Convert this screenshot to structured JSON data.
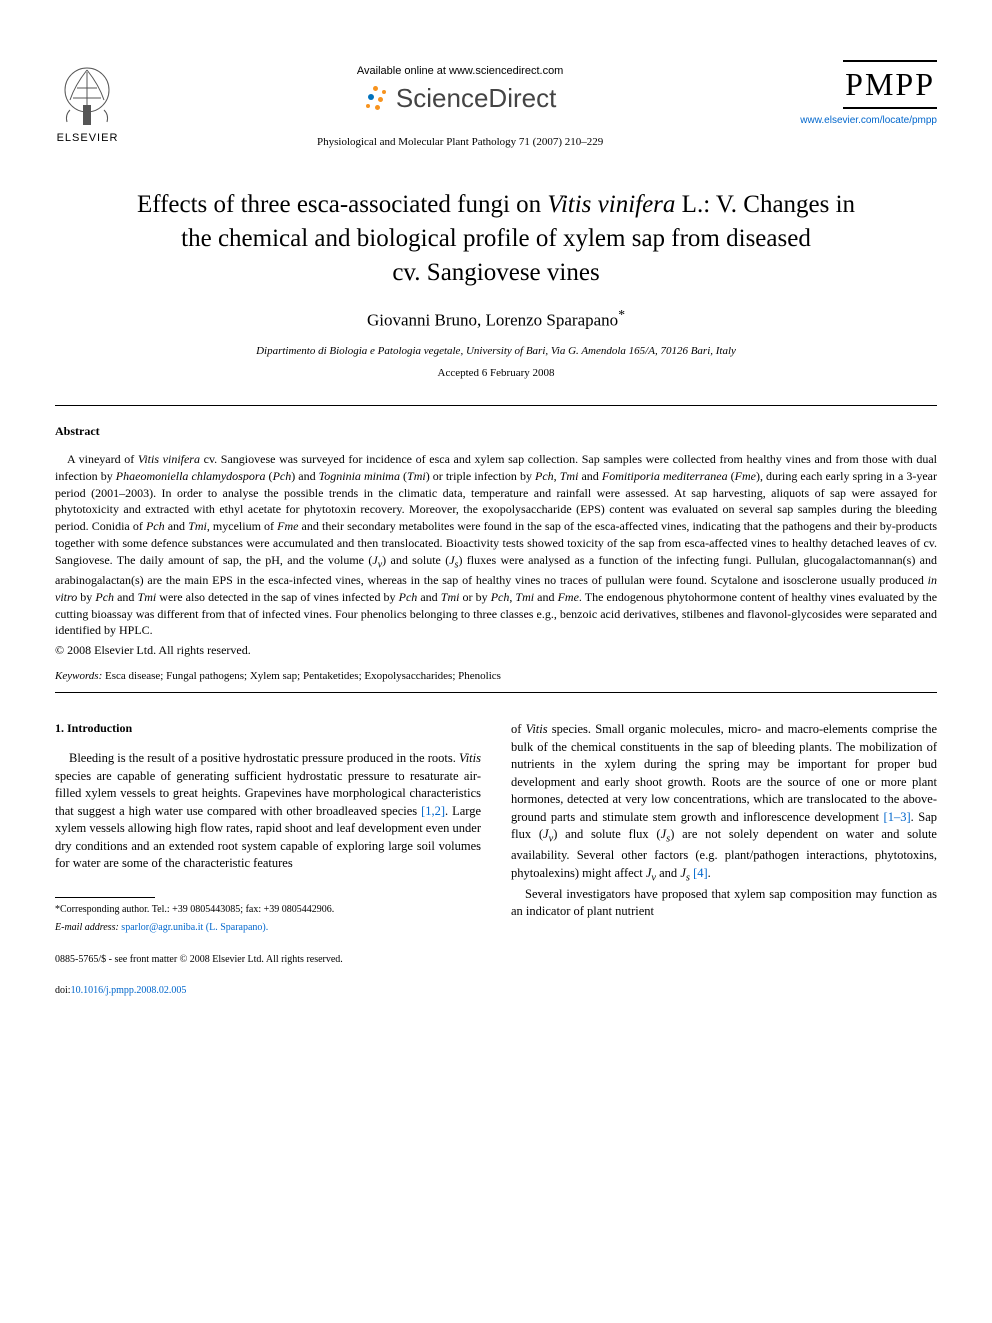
{
  "header": {
    "elsevier_label": "ELSEVIER",
    "available_online": "Available online at www.sciencedirect.com",
    "sciencedirect": "ScienceDirect",
    "journal_ref": "Physiological and Molecular Plant Pathology 71 (2007) 210–229",
    "pmpp": "PMPP",
    "pmpp_link": "www.elsevier.com/locate/pmpp",
    "sd_dot_colors": [
      "#f7931e",
      "#f7931e",
      "#0071bc",
      "#f7931e",
      "#f7931e",
      "#f7931e"
    ]
  },
  "title": {
    "line1_pre": "Effects of three esca-associated fungi on ",
    "line1_italic": "Vitis vinifera",
    "line1_post": " L.: V. Changes in",
    "line2": "the chemical and biological profile of xylem sap from diseased",
    "line3": "cv. Sangiovese vines"
  },
  "authors": "Giovanni Bruno, Lorenzo Sparapano",
  "author_star": "*",
  "affiliation": "Dipartimento di Biologia e Patologia vegetale, University of Bari, Via G. Amendola 165/A, 70126 Bari, Italy",
  "accepted": "Accepted 6 February 2008",
  "abstract": {
    "heading": "Abstract",
    "text_html": "A vineyard of <span class=\"italic\">Vitis vinifera</span> cv. Sangiovese was surveyed for incidence of esca and xylem sap collection. Sap samples were collected from healthy vines and from those with dual infection by <span class=\"italic\">Phaeomoniella chlamydospora</span> (<span class=\"italic\">Pch</span>) and <span class=\"italic\">Togninia minima</span> (<span class=\"italic\">Tmi</span>) or triple infection by <span class=\"italic\">Pch</span>, <span class=\"italic\">Tmi</span> and <span class=\"italic\">Fomitiporia mediterranea</span> (<span class=\"italic\">Fme</span>), during each early spring in a 3-year period (2001–2003). In order to analyse the possible trends in the climatic data, temperature and rainfall were assessed. At sap harvesting, aliquots of sap were assayed for phytotoxicity and extracted with ethyl acetate for phytotoxin recovery. Moreover, the exopolysaccharide (EPS) content was evaluated on several sap samples during the bleeding period. Conidia of <span class=\"italic\">Pch</span> and <span class=\"italic\">Tmi</span>, mycelium of <span class=\"italic\">Fme</span> and their secondary metabolites were found in the sap of the esca-affected vines, indicating that the pathogens and their by-products together with some defence substances were accumulated and then translocated. Bioactivity tests showed toxicity of the sap from esca-affected vines to healthy detached leaves of cv. Sangiovese. The daily amount of sap, the pH, and the volume (<span class=\"italic\">J<sub>v</sub></span>) and solute (<span class=\"italic\">J<sub>s</sub></span>) fluxes were analysed as a function of the infecting fungi. Pullulan, glucogalactomannan(s) and arabinogalactan(s) are the main EPS in the esca-infected vines, whereas in the sap of healthy vines no traces of pullulan were found. Scytalone and isosclerone usually produced <span class=\"italic\">in vitro</span> by <span class=\"italic\">Pch</span> and <span class=\"italic\">Tmi</span> were also detected in the sap of vines infected by <span class=\"italic\">Pch</span> and <span class=\"italic\">Tmi</span> or by <span class=\"italic\">Pch</span>, <span class=\"italic\">Tmi</span> and <span class=\"italic\">Fme</span>. The endogenous phytohormone content of healthy vines evaluated by the cutting bioassay was different from that of infected vines. Four phenolics belonging to three classes e.g., benzoic acid derivatives, stilbenes and flavonol-glycosides were separated and identified by HPLC.",
    "copyright": "© 2008 Elsevier Ltd. All rights reserved."
  },
  "keywords": {
    "label": "Keywords:",
    "text": " Esca disease; Fungal pathogens; Xylem sap; Pentaketides; Exopolysaccharides; Phenolics"
  },
  "section": {
    "heading": "1. Introduction",
    "col1_html": "Bleeding is the result of a positive hydrostatic pressure produced in the roots. <span class=\"italic\">Vitis</span> species are capable of generating sufficient hydrostatic pressure to resaturate air-filled xylem vessels to great heights. Grapevines have morphological characteristics that suggest a high water use compared with other broadleaved species <span class=\"ref-link\">[1,2]</span>. Large xylem vessels allowing high flow rates, rapid shoot and leaf development even under dry conditions and an extended root system capable of exploring large soil volumes for water are some of the characteristic features",
    "col2_html": "of <span class=\"italic\">Vitis</span> species. Small organic molecules, micro- and macro-elements comprise the bulk of the chemical constituents in the sap of bleeding plants. The mobilization of nutrients in the xylem during the spring may be important for proper bud development and early shoot growth. Roots are the source of one or more plant hormones, detected at very low concentrations, which are translocated to the above-ground parts and stimulate stem growth and inflorescence development <span class=\"ref-link\">[1–3]</span>. Sap flux (<span class=\"italic\">J<sub>v</sub></span>) and solute flux (<span class=\"italic\">J<sub>s</sub></span>) are not solely dependent on water and solute availability. Several other factors (e.g. plant/pathogen interactions, phytotoxins, phytoalexins) might affect <span class=\"italic\">J<sub>v</sub></span> and <span class=\"italic\">J<sub>s</sub></span> <span class=\"ref-link\">[4]</span>.",
    "col2_p2_html": "Several investigators have proposed that xylem sap composition may function as an indicator of plant nutrient"
  },
  "footnotes": {
    "corresponding": "*Corresponding author. Tel.: +39 0805443085; fax: +39 0805442906.",
    "email_label": "E-mail address:",
    "email": " sparlor@agr.uniba.it (L. Sparapano)."
  },
  "footer": {
    "line1": "0885-5765/$ - see front matter © 2008 Elsevier Ltd. All rights reserved.",
    "doi_label": "doi:",
    "doi": "10.1016/j.pmpp.2008.02.005"
  },
  "colors": {
    "link": "#0066cc",
    "text": "#000000",
    "bg": "#ffffff"
  }
}
